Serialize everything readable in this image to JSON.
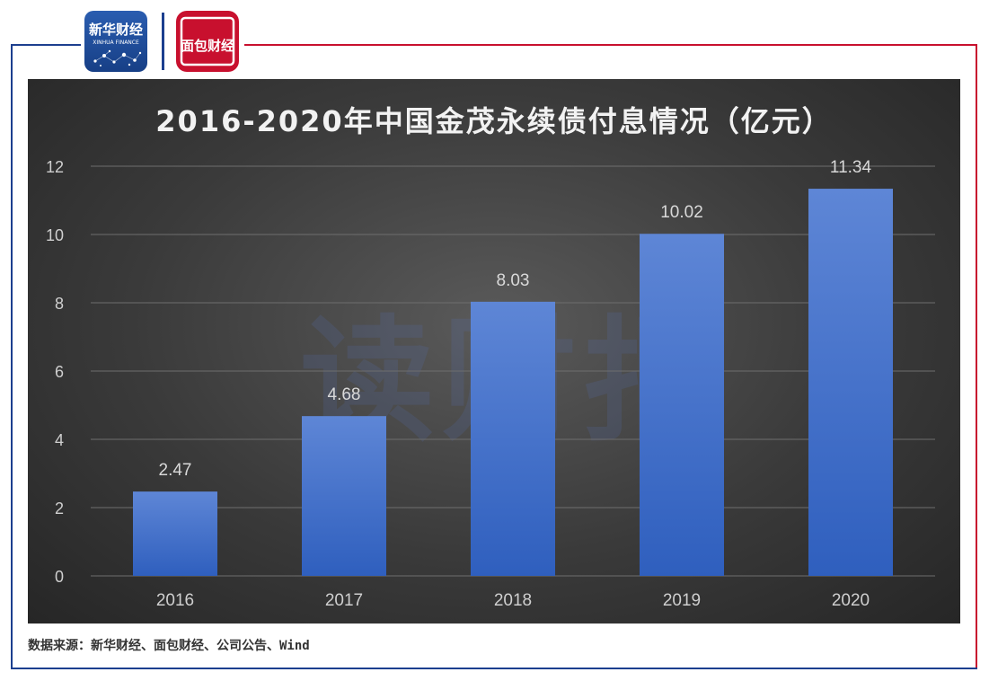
{
  "colors": {
    "frame_blue": "#1c3f8f",
    "frame_red": "#c8102e",
    "bar_top": "#5e86d6",
    "bar_bottom": "#2f5fbe",
    "gridline": "#6e6e6e",
    "axis_text": "#cfcfcf",
    "label_text": "#d9d9d9"
  },
  "logos": {
    "xinhua": {
      "name": "新华财经",
      "sub": "XINHUA FINANCE"
    },
    "mianbao": {
      "name": "面包财经"
    }
  },
  "watermark": "读财报",
  "source": "数据来源：新华财经、面包财经、公司公告、Wind",
  "chart_data": {
    "type": "bar",
    "title": "2016-2020年中国金茂永续债付息情况（亿元）",
    "categories": [
      "2016",
      "2017",
      "2018",
      "2019",
      "2020"
    ],
    "values": [
      2.47,
      4.68,
      8.03,
      10.02,
      11.34
    ],
    "data_labels": [
      "2.47",
      "4.68",
      "8.03",
      "10.02",
      "11.34"
    ],
    "xlabel": "",
    "ylabel": "",
    "ylim": [
      0,
      12
    ],
    "yticks": [
      0,
      2,
      4,
      6,
      8,
      10,
      12
    ],
    "grid": true,
    "legend": "none"
  }
}
